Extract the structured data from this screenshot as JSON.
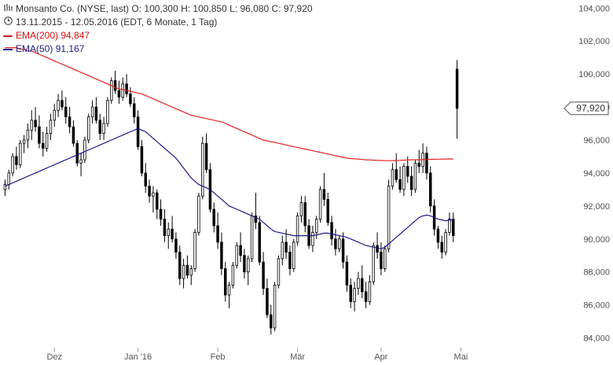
{
  "header": {
    "title": "Monsanto Co. (NYSE, last)  O: 100,300  H: 100,850  L: 96,080  C: 97,920",
    "period": "13.11.2015 - 12.05.2016 (EDT, 6 Monate, 1 Tag)",
    "ema200_label": "EMA(200)",
    "ema200_value": "94,847",
    "ema50_label": "EMA(50)",
    "ema50_value": "91,167",
    "chart_icon": "bar-chart-icon",
    "clock_icon": "clock-icon"
  },
  "colors": {
    "candle": "#000000",
    "ema200": "#e02020",
    "ema50": "#1a1a8c",
    "axis_text": "#555555",
    "price_tag_bg": "#ffffff",
    "price_tag_border": "#555555"
  },
  "chart_data": {
    "type": "candlestick",
    "title": "Monsanto Co. (NYSE, last)",
    "ylim": [
      83.5,
      104.3
    ],
    "y_ticks": [
      "84,000",
      "86,000",
      "88,000",
      "90,000",
      "92,000",
      "94,000",
      "96,000",
      "98,000",
      "100,000",
      "102,000",
      "104,000"
    ],
    "y_tick_values": [
      84,
      86,
      88,
      90,
      92,
      94,
      96,
      98,
      100,
      102,
      104
    ],
    "x_labels": [
      "Dez",
      "Jan '16",
      "Feb",
      "Mär",
      "Apr",
      "Mai"
    ],
    "x_label_index": [
      13,
      35,
      56,
      77,
      99,
      120
    ],
    "last_price_label": "97,920",
    "last_price": 97.92,
    "ohlc": [
      [
        93.0,
        93.6,
        92.6,
        93.3
      ],
      [
        93.3,
        94.2,
        93.0,
        94.0
      ],
      [
        94.0,
        95.2,
        93.8,
        95.0
      ],
      [
        95.0,
        95.6,
        94.2,
        94.5
      ],
      [
        94.5,
        96.0,
        94.3,
        95.8
      ],
      [
        95.8,
        96.3,
        95.2,
        96.0
      ],
      [
        96.0,
        97.0,
        95.5,
        96.6
      ],
      [
        96.6,
        97.8,
        96.0,
        97.2
      ],
      [
        97.2,
        98.0,
        96.5,
        96.8
      ],
      [
        96.8,
        97.5,
        95.5,
        95.8
      ],
      [
        95.8,
        96.5,
        95.0,
        95.5
      ],
      [
        95.5,
        96.8,
        95.3,
        96.4
      ],
      [
        96.4,
        97.6,
        96.0,
        97.2
      ],
      [
        97.2,
        98.2,
        96.8,
        97.8
      ],
      [
        97.8,
        98.8,
        97.4,
        98.4
      ],
      [
        98.4,
        99.0,
        97.8,
        98.0
      ],
      [
        98.0,
        98.6,
        97.0,
        97.4
      ],
      [
        97.4,
        98.0,
        96.4,
        96.8
      ],
      [
        96.8,
        97.2,
        95.6,
        95.8
      ],
      [
        95.8,
        96.0,
        94.4,
        94.6
      ],
      [
        94.6,
        95.2,
        93.8,
        94.8
      ],
      [
        94.8,
        96.2,
        94.6,
        96.0
      ],
      [
        96.0,
        97.6,
        95.8,
        97.4
      ],
      [
        97.4,
        98.4,
        97.0,
        98.0
      ],
      [
        98.0,
        98.6,
        97.0,
        97.2
      ],
      [
        97.2,
        97.6,
        96.0,
        96.4
      ],
      [
        96.4,
        97.4,
        96.0,
        97.0
      ],
      [
        97.0,
        98.6,
        96.8,
        98.4
      ],
      [
        98.4,
        99.8,
        98.2,
        99.6
      ],
      [
        99.6,
        100.2,
        98.8,
        99.0
      ],
      [
        99.0,
        99.6,
        98.2,
        98.6
      ],
      [
        98.6,
        99.8,
        98.4,
        99.4
      ],
      [
        99.4,
        100.0,
        98.6,
        98.8
      ],
      [
        98.8,
        99.2,
        98.0,
        98.2
      ],
      [
        98.2,
        98.6,
        97.0,
        97.4
      ],
      [
        97.4,
        97.8,
        95.4,
        95.6
      ],
      [
        95.6,
        96.0,
        93.8,
        94.0
      ],
      [
        94.0,
        94.6,
        92.8,
        93.2
      ],
      [
        93.2,
        93.6,
        92.2,
        92.6
      ],
      [
        92.6,
        93.2,
        91.6,
        92.8
      ],
      [
        92.8,
        93.0,
        91.2,
        91.8
      ],
      [
        91.8,
        92.4,
        90.8,
        91.2
      ],
      [
        91.2,
        91.8,
        89.8,
        90.2
      ],
      [
        90.2,
        91.0,
        89.4,
        90.6
      ],
      [
        90.6,
        91.4,
        89.8,
        90.0
      ],
      [
        90.0,
        90.4,
        88.8,
        89.2
      ],
      [
        89.2,
        89.6,
        87.2,
        87.6
      ],
      [
        87.6,
        88.8,
        87.0,
        88.4
      ],
      [
        88.4,
        89.0,
        87.6,
        87.8
      ],
      [
        87.8,
        88.4,
        87.2,
        88.2
      ],
      [
        88.2,
        90.6,
        88.0,
        90.4
      ],
      [
        90.4,
        92.8,
        90.2,
        92.6
      ],
      [
        92.6,
        96.2,
        92.4,
        95.8
      ],
      [
        95.8,
        96.4,
        94.0,
        94.2
      ],
      [
        94.2,
        94.6,
        91.6,
        91.8
      ],
      [
        91.8,
        92.2,
        90.4,
        90.8
      ],
      [
        90.8,
        91.6,
        89.4,
        89.8
      ],
      [
        89.8,
        90.4,
        87.8,
        88.2
      ],
      [
        88.2,
        88.6,
        86.2,
        86.6
      ],
      [
        86.6,
        87.4,
        85.8,
        87.2
      ],
      [
        87.2,
        88.6,
        87.0,
        88.4
      ],
      [
        88.4,
        89.8,
        88.2,
        89.6
      ],
      [
        89.6,
        90.4,
        88.6,
        89.0
      ],
      [
        89.0,
        89.4,
        87.6,
        88.0
      ],
      [
        88.0,
        89.0,
        87.2,
        88.8
      ],
      [
        88.8,
        91.6,
        88.6,
        91.4
      ],
      [
        91.4,
        92.8,
        90.6,
        91.0
      ],
      [
        91.0,
        91.4,
        88.4,
        88.6
      ],
      [
        88.6,
        89.2,
        86.6,
        87.0
      ],
      [
        87.0,
        87.6,
        85.2,
        85.4
      ],
      [
        85.4,
        86.0,
        84.2,
        84.6
      ],
      [
        84.6,
        87.4,
        84.4,
        87.2
      ],
      [
        87.2,
        89.0,
        87.0,
        88.8
      ],
      [
        88.8,
        90.2,
        88.4,
        89.8
      ],
      [
        89.8,
        90.6,
        88.8,
        89.2
      ],
      [
        89.2,
        89.6,
        87.8,
        88.2
      ],
      [
        88.2,
        90.0,
        88.0,
        89.8
      ],
      [
        89.8,
        91.6,
        89.6,
        91.4
      ],
      [
        91.4,
        92.6,
        91.0,
        92.2
      ],
      [
        92.2,
        92.6,
        90.4,
        90.8
      ],
      [
        90.8,
        91.2,
        89.4,
        89.6
      ],
      [
        89.6,
        90.8,
        89.2,
        90.4
      ],
      [
        90.4,
        91.4,
        90.0,
        91.2
      ],
      [
        91.2,
        93.2,
        91.0,
        93.0
      ],
      [
        93.0,
        94.0,
        92.0,
        92.4
      ],
      [
        92.4,
        92.8,
        90.8,
        91.0
      ],
      [
        91.0,
        91.4,
        89.6,
        90.0
      ],
      [
        90.0,
        90.6,
        89.0,
        89.4
      ],
      [
        89.4,
        90.2,
        89.2,
        90.0
      ],
      [
        90.0,
        90.4,
        88.2,
        88.6
      ],
      [
        88.6,
        89.0,
        86.8,
        87.2
      ],
      [
        87.2,
        87.6,
        85.8,
        86.2
      ],
      [
        86.2,
        87.4,
        85.6,
        87.0
      ],
      [
        87.0,
        88.0,
        86.6,
        87.6
      ],
      [
        87.6,
        88.4,
        86.4,
        86.8
      ],
      [
        86.8,
        87.4,
        85.8,
        86.2
      ],
      [
        86.2,
        87.8,
        86.0,
        87.4
      ],
      [
        87.4,
        89.8,
        87.2,
        89.6
      ],
      [
        89.6,
        90.4,
        88.8,
        89.2
      ],
      [
        89.2,
        89.8,
        87.8,
        88.2
      ],
      [
        88.2,
        89.6,
        88.0,
        89.4
      ],
      [
        89.4,
        93.6,
        89.2,
        93.2
      ],
      [
        93.2,
        94.6,
        93.0,
        94.2
      ],
      [
        94.2,
        95.2,
        93.4,
        93.6
      ],
      [
        93.6,
        94.4,
        92.8,
        93.0
      ],
      [
        93.0,
        94.6,
        92.6,
        94.4
      ],
      [
        94.4,
        95.0,
        93.4,
        93.8
      ],
      [
        93.8,
        94.4,
        92.6,
        93.0
      ],
      [
        93.0,
        94.8,
        92.8,
        94.6
      ],
      [
        94.6,
        95.4,
        94.0,
        94.4
      ],
      [
        94.4,
        95.8,
        94.0,
        95.2
      ],
      [
        95.2,
        95.6,
        93.6,
        94.0
      ],
      [
        94.0,
        94.4,
        91.6,
        92.0
      ],
      [
        92.0,
        92.4,
        90.2,
        90.6
      ],
      [
        90.6,
        90.8,
        89.4,
        89.8
      ],
      [
        89.8,
        90.2,
        88.8,
        89.2
      ],
      [
        89.2,
        90.6,
        89.0,
        90.4
      ],
      [
        90.4,
        91.6,
        90.2,
        91.2
      ],
      [
        91.2,
        91.6,
        89.8,
        90.2
      ],
      [
        100.3,
        100.85,
        96.08,
        97.92
      ]
    ],
    "series": [
      {
        "name": "EMA(200)",
        "color": "#e02020",
        "values": [
          101.6,
          101.6,
          101.6,
          101.6,
          101.5,
          101.5,
          101.4,
          101.4,
          101.3,
          101.2,
          101.1,
          101.0,
          100.9,
          100.8,
          100.7,
          100.6,
          100.5,
          100.4,
          100.3,
          100.2,
          100.1,
          100.0,
          99.9,
          99.8,
          99.7,
          99.6,
          99.5,
          99.4,
          99.3,
          99.2,
          99.1,
          99.05,
          99.0,
          98.95,
          98.9,
          98.85,
          98.8,
          98.7,
          98.6,
          98.5,
          98.4,
          98.3,
          98.2,
          98.1,
          98.0,
          97.9,
          97.8,
          97.7,
          97.6,
          97.5,
          97.45,
          97.4,
          97.35,
          97.3,
          97.25,
          97.2,
          97.15,
          97.1,
          97.0,
          96.9,
          96.8,
          96.7,
          96.6,
          96.5,
          96.4,
          96.3,
          96.2,
          96.1,
          96.0,
          95.95,
          95.9,
          95.85,
          95.8,
          95.75,
          95.7,
          95.65,
          95.6,
          95.55,
          95.5,
          95.45,
          95.4,
          95.35,
          95.3,
          95.25,
          95.2,
          95.15,
          95.1,
          95.05,
          95.0,
          94.95,
          94.9,
          94.88,
          94.86,
          94.84,
          94.82,
          94.8,
          94.79,
          94.78,
          94.77,
          94.76,
          94.75,
          94.75,
          94.75,
          94.76,
          94.77,
          94.78,
          94.79,
          94.8,
          94.8,
          94.8,
          94.81,
          94.82,
          94.83,
          94.83,
          94.84,
          94.84,
          94.85,
          94.85,
          94.847
        ]
      },
      {
        "name": "EMA(50)",
        "color": "#1a1a8c",
        "values": [
          93.2,
          93.3,
          93.4,
          93.5,
          93.6,
          93.7,
          93.8,
          93.9,
          94.0,
          94.1,
          94.2,
          94.3,
          94.4,
          94.5,
          94.6,
          94.7,
          94.8,
          94.9,
          95.0,
          95.1,
          95.2,
          95.3,
          95.4,
          95.5,
          95.6,
          95.7,
          95.8,
          95.9,
          96.0,
          96.1,
          96.2,
          96.3,
          96.4,
          96.5,
          96.6,
          96.7,
          96.6,
          96.5,
          96.3,
          96.1,
          95.9,
          95.7,
          95.5,
          95.3,
          95.1,
          94.9,
          94.6,
          94.3,
          94.0,
          93.7,
          93.5,
          93.3,
          93.2,
          93.1,
          93.0,
          92.8,
          92.6,
          92.4,
          92.2,
          92.0,
          91.9,
          91.8,
          91.7,
          91.6,
          91.5,
          91.4,
          91.3,
          91.2,
          91.0,
          90.8,
          90.6,
          90.45,
          90.4,
          90.35,
          90.3,
          90.25,
          90.2,
          90.2,
          90.2,
          90.2,
          90.2,
          90.2,
          90.25,
          90.3,
          90.35,
          90.35,
          90.3,
          90.25,
          90.2,
          90.15,
          90.1,
          90.0,
          89.9,
          89.8,
          89.7,
          89.6,
          89.55,
          89.5,
          89.45,
          89.4,
          89.5,
          89.7,
          89.9,
          90.1,
          90.3,
          90.5,
          90.7,
          90.9,
          91.1,
          91.3,
          91.4,
          91.45,
          91.4,
          91.3,
          91.2,
          91.15,
          91.1,
          91.15,
          91.167
        ]
      }
    ]
  }
}
